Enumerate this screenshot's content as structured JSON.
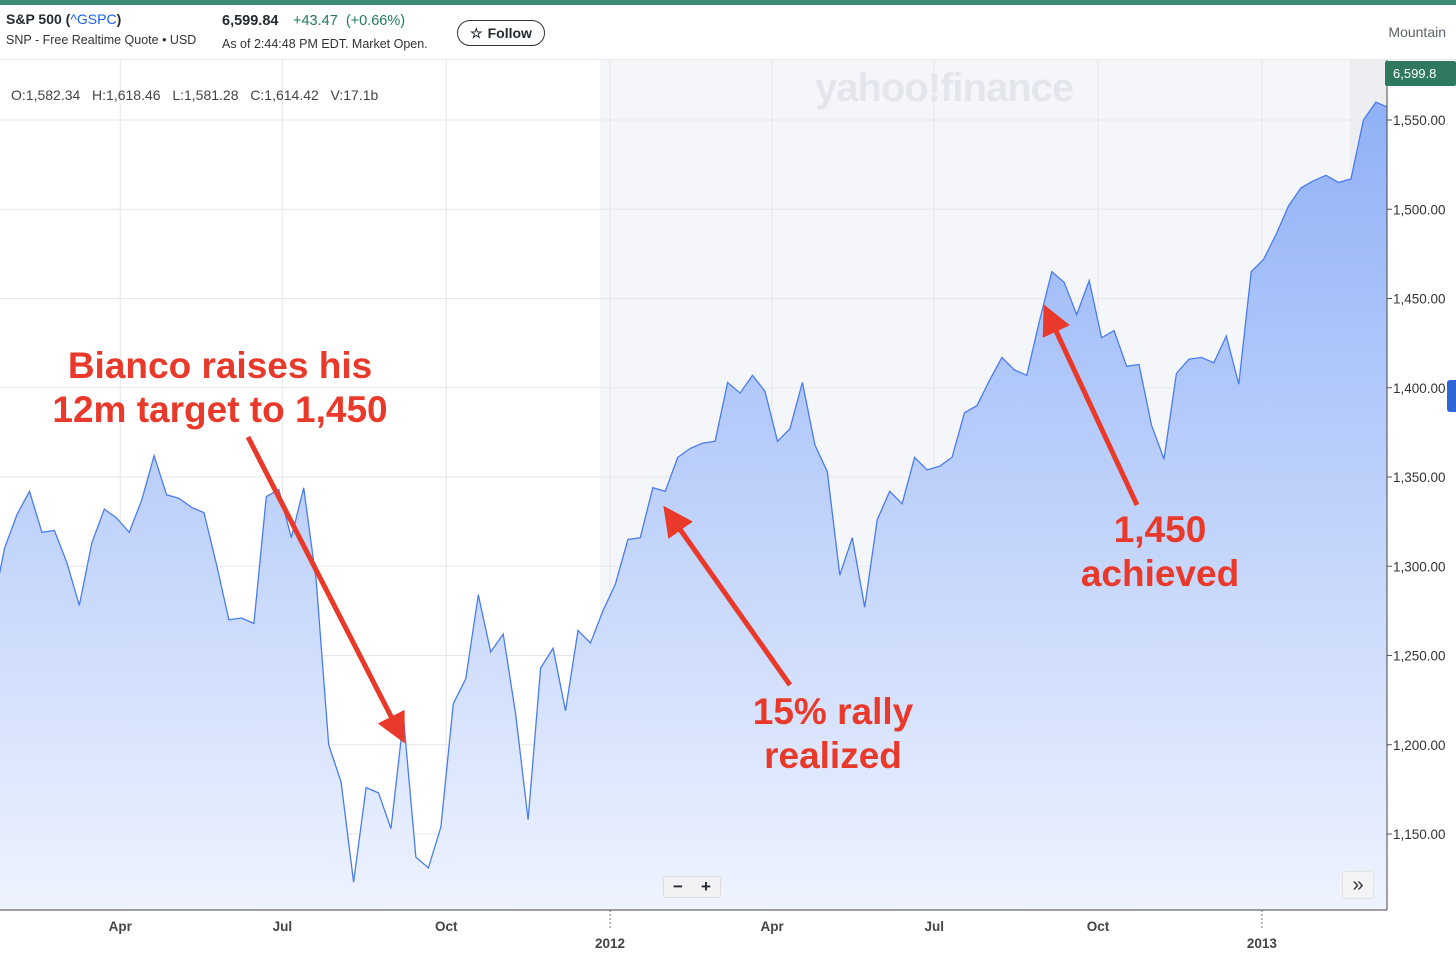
{
  "header": {
    "name": "S&P 500 (",
    "ticker": "^GSPC",
    "name_close": ")",
    "subtitle": "SNP - Free Realtime Quote • USD",
    "price": "6,599.84",
    "change": "+43.47",
    "change_pct": "(+0.66%)",
    "as_of": "As of 2:44:48 PM EDT. Market Open.",
    "follow_label": "Follow",
    "follow_icon": "star-outline-icon",
    "timezone": "Mountain"
  },
  "ohlc": "O:1,582.34  H:1,618.46  L:1,581.28  C:1,614.42  V:17.1b",
  "watermark": "yahoo!finance",
  "price_tag": "6,599.8",
  "controls": {
    "zoom_out": "−",
    "zoom_in": "+",
    "jump_end": "»"
  },
  "colors": {
    "line": "#4a7cf0",
    "fill_top": "#8fb0f7",
    "fill_bottom": "#eef3fe",
    "annotation": "#e8392a",
    "accent": "#2f7a5e"
  },
  "annotations": [
    "Bianco raises his\n12m target to 1,450",
    "15% rally\nrealized",
    "1,450\nachieved"
  ],
  "chart_data": {
    "type": "area",
    "ylim": [
      1110,
      1580
    ],
    "yticks": [
      "1,150.00",
      "1,200.00",
      "1,250.00",
      "1,300.00",
      "1,350.00",
      "1,400.00",
      "1,450.00",
      "1,500.00",
      "1,550.00"
    ],
    "ytick_values": [
      1150,
      1200,
      1250,
      1300,
      1350,
      1400,
      1450,
      1500,
      1550
    ],
    "xticks": [
      {
        "label": "Apr",
        "date": "2011-04-01"
      },
      {
        "label": "Jul",
        "date": "2011-07-01"
      },
      {
        "label": "Oct",
        "date": "2011-10-01"
      },
      {
        "label": "2012",
        "date": "2012-01-01",
        "year": true
      },
      {
        "label": "Apr",
        "date": "2012-04-01"
      },
      {
        "label": "Jul",
        "date": "2012-07-01"
      },
      {
        "label": "Oct",
        "date": "2012-10-01"
      },
      {
        "label": "2013",
        "date": "2013-01-01",
        "year": true
      }
    ],
    "grid": true,
    "x": [
      "2011-01-19",
      "2011-01-26",
      "2011-02-02",
      "2011-02-09",
      "2011-02-16",
      "2011-02-23",
      "2011-03-02",
      "2011-03-09",
      "2011-03-16",
      "2011-03-23",
      "2011-03-30",
      "2011-04-06",
      "2011-04-13",
      "2011-04-20",
      "2011-04-27",
      "2011-05-04",
      "2011-05-11",
      "2011-05-18",
      "2011-05-25",
      "2011-06-01",
      "2011-06-08",
      "2011-06-15",
      "2011-06-22",
      "2011-06-29",
      "2011-07-06",
      "2011-07-13",
      "2011-07-20",
      "2011-07-27",
      "2011-08-03",
      "2011-08-10",
      "2011-08-17",
      "2011-08-24",
      "2011-08-31",
      "2011-09-07",
      "2011-09-14",
      "2011-09-21",
      "2011-09-28",
      "2011-10-05",
      "2011-10-12",
      "2011-10-19",
      "2011-10-26",
      "2011-11-02",
      "2011-11-09",
      "2011-11-16",
      "2011-11-23",
      "2011-11-30",
      "2011-12-07",
      "2011-12-14",
      "2011-12-21",
      "2011-12-28",
      "2012-01-04",
      "2012-01-11",
      "2012-01-18",
      "2012-01-25",
      "2012-02-01",
      "2012-02-08",
      "2012-02-15",
      "2012-02-22",
      "2012-02-29",
      "2012-03-07",
      "2012-03-14",
      "2012-03-21",
      "2012-03-28",
      "2012-04-04",
      "2012-04-11",
      "2012-04-18",
      "2012-04-25",
      "2012-05-02",
      "2012-05-09",
      "2012-05-16",
      "2012-05-23",
      "2012-05-30",
      "2012-06-06",
      "2012-06-13",
      "2012-06-20",
      "2012-06-27",
      "2012-07-04",
      "2012-07-11",
      "2012-07-18",
      "2012-07-25",
      "2012-08-01",
      "2012-08-08",
      "2012-08-15",
      "2012-08-22",
      "2012-08-29",
      "2012-09-05",
      "2012-09-12",
      "2012-09-19",
      "2012-09-26",
      "2012-10-03",
      "2012-10-10",
      "2012-10-17",
      "2012-10-24",
      "2012-10-31",
      "2012-11-07",
      "2012-11-14",
      "2012-11-21",
      "2012-11-28",
      "2012-12-05",
      "2012-12-12",
      "2012-12-19",
      "2012-12-26",
      "2013-01-02",
      "2013-01-09",
      "2013-01-16",
      "2013-01-23",
      "2013-01-30",
      "2013-02-06",
      "2013-02-13",
      "2013-02-20",
      "2013-02-27",
      "2013-03-06",
      "2013-03-13",
      "2013-03-20"
    ],
    "values": [
      1275,
      1310,
      1329,
      1342,
      1319,
      1320,
      1302,
      1278,
      1313,
      1332,
      1327,
      1319,
      1337,
      1362,
      1340,
      1338,
      1333,
      1330,
      1301,
      1270,
      1271,
      1268,
      1339,
      1343,
      1316,
      1344,
      1292,
      1200,
      1179,
      1123,
      1176,
      1173,
      1153,
      1215,
      1137,
      1131,
      1154,
      1223,
      1237,
      1284,
      1252,
      1262,
      1217,
      1158,
      1243,
      1254,
      1219,
      1264,
      1257,
      1275,
      1290,
      1315,
      1316,
      1344,
      1342,
      1361,
      1366,
      1369,
      1370,
      1403,
      1397,
      1407,
      1398,
      1370,
      1377,
      1403,
      1368,
      1353,
      1295,
      1316,
      1277,
      1326,
      1342,
      1335,
      1361,
      1354,
      1356,
      1361,
      1386,
      1390,
      1404,
      1417,
      1410,
      1407,
      1437,
      1465,
      1459,
      1441,
      1460,
      1428,
      1432,
      1412,
      1413,
      1379,
      1360,
      1408,
      1416,
      1417,
      1414,
      1429,
      1402,
      1465,
      1472,
      1486,
      1502,
      1512,
      1516,
      1519,
      1515,
      1517,
      1550,
      1560,
      1557,
      1566
    ]
  }
}
